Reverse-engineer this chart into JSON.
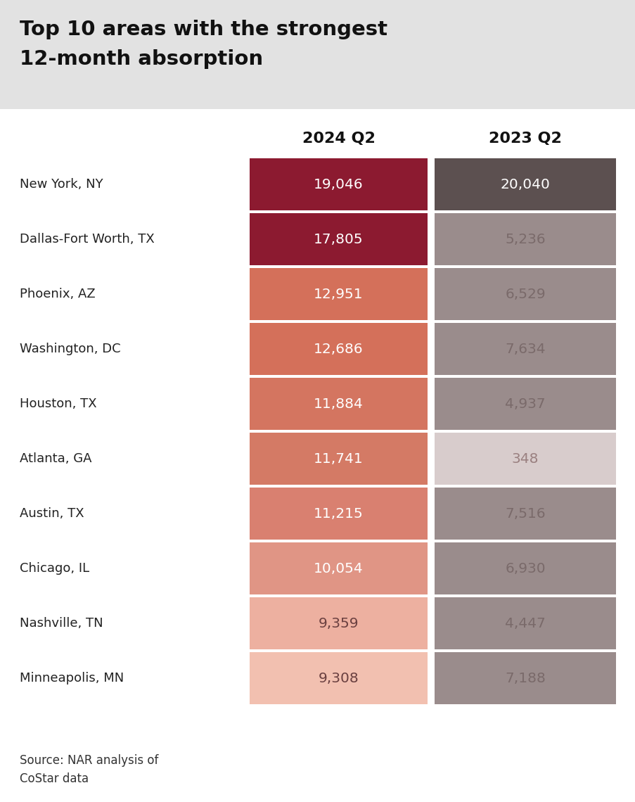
{
  "title_line1": "Top 10 areas with the strongest",
  "title_line2": "12-month absorption",
  "title_bg_color": "#e2e2e2",
  "bg_color": "#ffffff",
  "col1_header": "2024 Q2",
  "col2_header": "2023 Q2",
  "source_text": "Source: NAR analysis of\nCoStar data",
  "areas": [
    "New York, NY",
    "Dallas-Fort Worth, TX",
    "Phoenix, AZ",
    "Washington, DC",
    "Houston, TX",
    "Atlanta, GA",
    "Austin, TX",
    "Chicago, IL",
    "Nashville, TN",
    "Minneapolis, MN"
  ],
  "labels_2024": [
    "19,046",
    "17,805",
    "12,951",
    "12,686",
    "11,884",
    "11,741",
    "11,215",
    "10,054",
    "9,359",
    "9,308"
  ],
  "labels_2023": [
    "20,040",
    "5,236",
    "6,529",
    "7,634",
    "4,937",
    "348",
    "7,516",
    "6,930",
    "4,447",
    "7,188"
  ],
  "colors_2024": [
    "#8C1A30",
    "#8C1A30",
    "#D4705A",
    "#D4705A",
    "#D47560",
    "#D47A65",
    "#D98070",
    "#E09585",
    "#EDB0A0",
    "#F2C0B0"
  ],
  "colors_2023": [
    "#5C5050",
    "#9A8C8C",
    "#9A8C8C",
    "#9A8C8C",
    "#9A8C8C",
    "#D8CCCC",
    "#9A8C8C",
    "#9A8C8C",
    "#9A8C8C",
    "#9A8C8C"
  ],
  "text_colors_2024": [
    "#ffffff",
    "#ffffff",
    "#ffffff",
    "#ffffff",
    "#ffffff",
    "#ffffff",
    "#ffffff",
    "#ffffff",
    "#6A4040",
    "#6A4040"
  ],
  "text_colors_2023": [
    "#ffffff",
    "#7A6A6A",
    "#7A6A6A",
    "#7A6A6A",
    "#7A6A6A",
    "#9A8080",
    "#7A6A6A",
    "#7A6A6A",
    "#7A6A6A",
    "#7A6A6A"
  ]
}
